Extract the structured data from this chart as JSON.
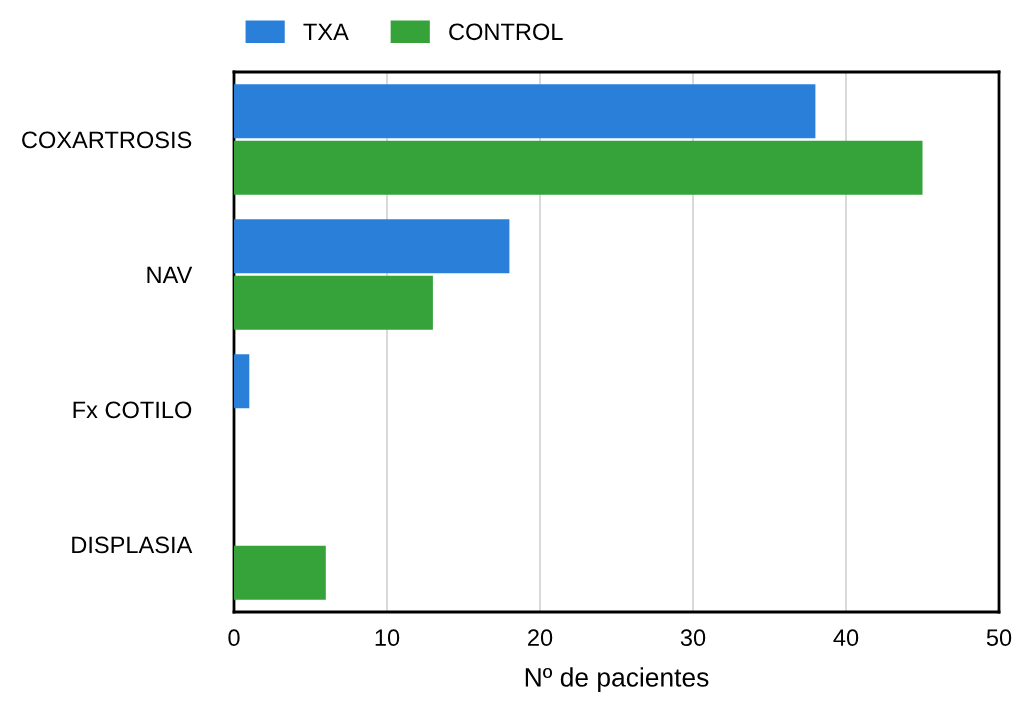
{
  "chart_data": {
    "type": "bar",
    "orientation": "horizontal",
    "xlabel": "Nº de pacientes",
    "categories": [
      "COXARTROSIS",
      "NAV",
      "Fx COTILO",
      "DISPLASIA"
    ],
    "series": [
      {
        "name": "TXA",
        "color": "#2a7fd8",
        "values": [
          38,
          18,
          1,
          0
        ]
      },
      {
        "name": "CONTROL",
        "color": "#35a33a",
        "values": [
          45,
          13,
          0,
          6
        ]
      }
    ],
    "xlim": [
      0,
      50
    ],
    "xticks": [
      0,
      10,
      20,
      30,
      40,
      50
    ],
    "grid": "x",
    "legend": "top left"
  }
}
